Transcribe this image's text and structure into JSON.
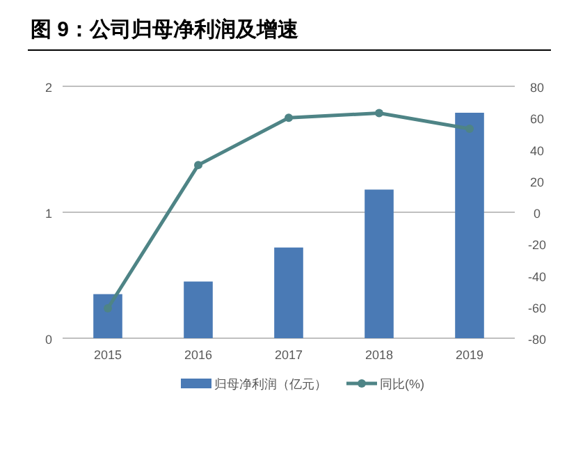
{
  "chart_data": {
    "type": "bar",
    "title": "图 9：公司归母净利润及增速",
    "categories": [
      "2015",
      "2016",
      "2017",
      "2018",
      "2019"
    ],
    "series": [
      {
        "name": "归母净利润（亿元）",
        "color": "#4a7ab5",
        "values": [
          0.35,
          0.45,
          0.72,
          1.18,
          1.79
        ]
      },
      {
        "name": "同比(%)",
        "type": "line",
        "axis": "y2",
        "color": "#4e8486",
        "marker": "circle",
        "values": [
          -61,
          30,
          60,
          63,
          53
        ]
      }
    ],
    "ylim": [
      0,
      2
    ],
    "yticks": [
      0,
      1,
      2
    ],
    "y2lim": [
      -80,
      80
    ],
    "y2ticks": [
      -80,
      -60,
      -40,
      -20,
      0,
      20,
      40,
      60,
      80
    ],
    "grid": "y",
    "legend": "bottom"
  }
}
